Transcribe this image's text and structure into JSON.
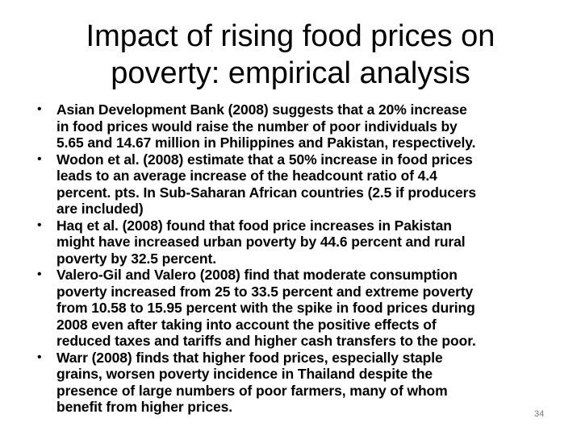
{
  "slide": {
    "title_lines": [
      "Impact of rising food prices on",
      "poverty: empirical analysis"
    ],
    "bullet_mark": "•",
    "bullets": [
      {
        "lines": [
          "Asian Development Bank (2008) suggests that a 20% increase",
          "in food prices would raise the number of poor individuals by",
          "5.65 and 14.67 million in Philippines and Pakistan, respectively."
        ]
      },
      {
        "lines": [
          "Wodon et al. (2008) estimate that a 50% increase in food prices",
          "leads to an average increase of the headcount ratio of 4.4",
          "percent. pts. In Sub-Saharan African countries (2.5 if producers",
          "are included)"
        ]
      },
      {
        "lines": [
          "Haq et al. (2008) found that food price increases in Pakistan",
          "might have increased urban poverty by 44.6 percent and rural",
          "poverty by 32.5 percent."
        ]
      },
      {
        "lines": [
          "Valero-Gil and Valero (2008) find that moderate consumption",
          "poverty increased from 25 to 33.5 percent and extreme poverty",
          "from 10.58 to 15.95 percent with the spike in food prices during",
          "2008 even after taking into account the positive effects of",
          "reduced taxes and tariffs and higher cash transfers to the poor."
        ]
      },
      {
        "lines": [
          "Warr (2008) finds that higher food prices, especially staple",
          "grains, worsen poverty incidence in Thailand despite the",
          "presence of large numbers of poor farmers, many of whom",
          "benefit from higher prices."
        ]
      }
    ],
    "page_number": "34"
  }
}
